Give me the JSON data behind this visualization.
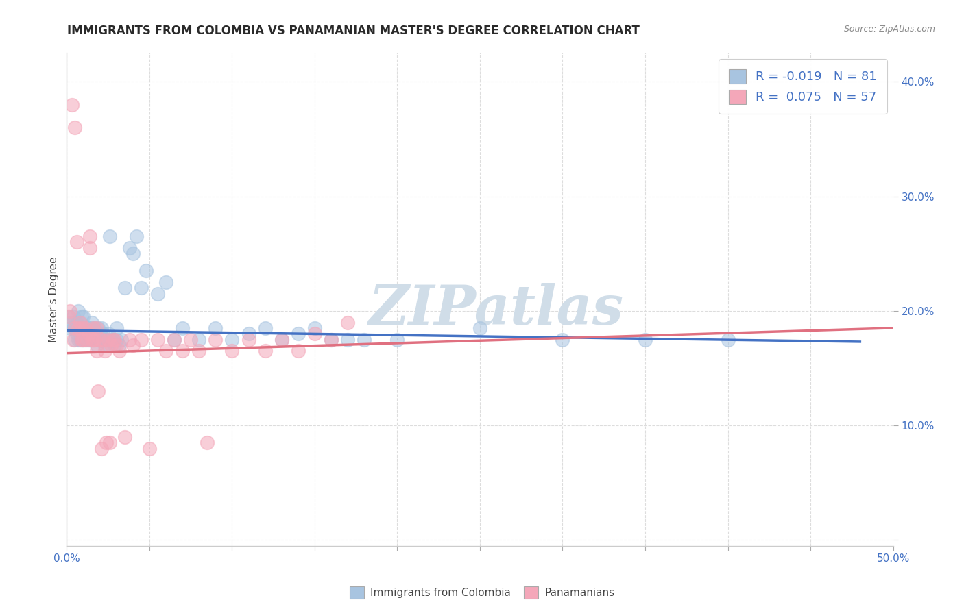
{
  "title": "IMMIGRANTS FROM COLOMBIA VS PANAMANIAN MASTER'S DEGREE CORRELATION CHART",
  "source": "Source: ZipAtlas.com",
  "ylabel": "Master's Degree",
  "xlim": [
    0.0,
    0.5
  ],
  "ylim": [
    -0.005,
    0.425
  ],
  "xticks": [
    0.0,
    0.05,
    0.1,
    0.15,
    0.2,
    0.25,
    0.3,
    0.35,
    0.4,
    0.45,
    0.5
  ],
  "yticks": [
    0.0,
    0.1,
    0.2,
    0.3,
    0.4
  ],
  "colombia_color": "#a8c4e0",
  "panama_color": "#f4a7b9",
  "colombia_line_color": "#4472c4",
  "panama_line_color": "#e07080",
  "watermark": "ZIPatlas",
  "watermark_color": "#d0dde8",
  "colombia_scatter": [
    [
      0.001,
      0.195
    ],
    [
      0.002,
      0.185
    ],
    [
      0.003,
      0.19
    ],
    [
      0.004,
      0.185
    ],
    [
      0.004,
      0.195
    ],
    [
      0.005,
      0.175
    ],
    [
      0.005,
      0.185
    ],
    [
      0.006,
      0.18
    ],
    [
      0.006,
      0.19
    ],
    [
      0.007,
      0.2
    ],
    [
      0.007,
      0.185
    ],
    [
      0.007,
      0.175
    ],
    [
      0.008,
      0.18
    ],
    [
      0.008,
      0.19
    ],
    [
      0.008,
      0.175
    ],
    [
      0.009,
      0.185
    ],
    [
      0.009,
      0.195
    ],
    [
      0.01,
      0.175
    ],
    [
      0.01,
      0.185
    ],
    [
      0.01,
      0.195
    ],
    [
      0.011,
      0.175
    ],
    [
      0.011,
      0.185
    ],
    [
      0.012,
      0.18
    ],
    [
      0.012,
      0.185
    ],
    [
      0.013,
      0.175
    ],
    [
      0.013,
      0.185
    ],
    [
      0.014,
      0.175
    ],
    [
      0.014,
      0.185
    ],
    [
      0.015,
      0.18
    ],
    [
      0.015,
      0.19
    ],
    [
      0.016,
      0.175
    ],
    [
      0.016,
      0.185
    ],
    [
      0.017,
      0.175
    ],
    [
      0.017,
      0.185
    ],
    [
      0.018,
      0.17
    ],
    [
      0.018,
      0.18
    ],
    [
      0.019,
      0.175
    ],
    [
      0.019,
      0.185
    ],
    [
      0.02,
      0.175
    ],
    [
      0.02,
      0.18
    ],
    [
      0.021,
      0.175
    ],
    [
      0.021,
      0.185
    ],
    [
      0.022,
      0.175
    ],
    [
      0.022,
      0.18
    ],
    [
      0.023,
      0.17
    ],
    [
      0.024,
      0.175
    ],
    [
      0.025,
      0.17
    ],
    [
      0.025,
      0.18
    ],
    [
      0.026,
      0.265
    ],
    [
      0.027,
      0.175
    ],
    [
      0.028,
      0.175
    ],
    [
      0.029,
      0.17
    ],
    [
      0.03,
      0.175
    ],
    [
      0.03,
      0.185
    ],
    [
      0.032,
      0.17
    ],
    [
      0.033,
      0.175
    ],
    [
      0.035,
      0.22
    ],
    [
      0.038,
      0.255
    ],
    [
      0.04,
      0.25
    ],
    [
      0.042,
      0.265
    ],
    [
      0.045,
      0.22
    ],
    [
      0.048,
      0.235
    ],
    [
      0.055,
      0.215
    ],
    [
      0.06,
      0.225
    ],
    [
      0.065,
      0.175
    ],
    [
      0.07,
      0.185
    ],
    [
      0.08,
      0.175
    ],
    [
      0.09,
      0.185
    ],
    [
      0.1,
      0.175
    ],
    [
      0.11,
      0.18
    ],
    [
      0.12,
      0.185
    ],
    [
      0.13,
      0.175
    ],
    [
      0.14,
      0.18
    ],
    [
      0.15,
      0.185
    ],
    [
      0.16,
      0.175
    ],
    [
      0.17,
      0.175
    ],
    [
      0.18,
      0.175
    ],
    [
      0.2,
      0.175
    ],
    [
      0.25,
      0.185
    ],
    [
      0.3,
      0.175
    ],
    [
      0.35,
      0.175
    ],
    [
      0.4,
      0.175
    ]
  ],
  "panama_scatter": [
    [
      0.001,
      0.195
    ],
    [
      0.002,
      0.2
    ],
    [
      0.003,
      0.38
    ],
    [
      0.004,
      0.175
    ],
    [
      0.005,
      0.36
    ],
    [
      0.005,
      0.185
    ],
    [
      0.006,
      0.26
    ],
    [
      0.007,
      0.185
    ],
    [
      0.008,
      0.19
    ],
    [
      0.009,
      0.175
    ],
    [
      0.009,
      0.185
    ],
    [
      0.01,
      0.175
    ],
    [
      0.011,
      0.185
    ],
    [
      0.012,
      0.175
    ],
    [
      0.013,
      0.18
    ],
    [
      0.014,
      0.265
    ],
    [
      0.014,
      0.255
    ],
    [
      0.015,
      0.175
    ],
    [
      0.016,
      0.185
    ],
    [
      0.016,
      0.175
    ],
    [
      0.017,
      0.175
    ],
    [
      0.018,
      0.185
    ],
    [
      0.018,
      0.165
    ],
    [
      0.019,
      0.13
    ],
    [
      0.02,
      0.175
    ],
    [
      0.021,
      0.08
    ],
    [
      0.022,
      0.175
    ],
    [
      0.023,
      0.165
    ],
    [
      0.024,
      0.085
    ],
    [
      0.025,
      0.175
    ],
    [
      0.026,
      0.085
    ],
    [
      0.027,
      0.17
    ],
    [
      0.028,
      0.175
    ],
    [
      0.029,
      0.175
    ],
    [
      0.03,
      0.17
    ],
    [
      0.032,
      0.165
    ],
    [
      0.035,
      0.09
    ],
    [
      0.038,
      0.175
    ],
    [
      0.04,
      0.17
    ],
    [
      0.045,
      0.175
    ],
    [
      0.05,
      0.08
    ],
    [
      0.055,
      0.175
    ],
    [
      0.06,
      0.165
    ],
    [
      0.065,
      0.175
    ],
    [
      0.07,
      0.165
    ],
    [
      0.075,
      0.175
    ],
    [
      0.08,
      0.165
    ],
    [
      0.085,
      0.085
    ],
    [
      0.09,
      0.175
    ],
    [
      0.1,
      0.165
    ],
    [
      0.11,
      0.175
    ],
    [
      0.12,
      0.165
    ],
    [
      0.13,
      0.175
    ],
    [
      0.14,
      0.165
    ],
    [
      0.15,
      0.18
    ],
    [
      0.16,
      0.175
    ],
    [
      0.17,
      0.19
    ]
  ],
  "colombia_trend_x": [
    0.0,
    0.48
  ],
  "colombia_trend_y": [
    0.183,
    0.173
  ],
  "panama_trend_x": [
    0.0,
    0.5
  ],
  "panama_trend_y": [
    0.163,
    0.185
  ],
  "background_color": "#ffffff",
  "grid_color": "#dddddd"
}
